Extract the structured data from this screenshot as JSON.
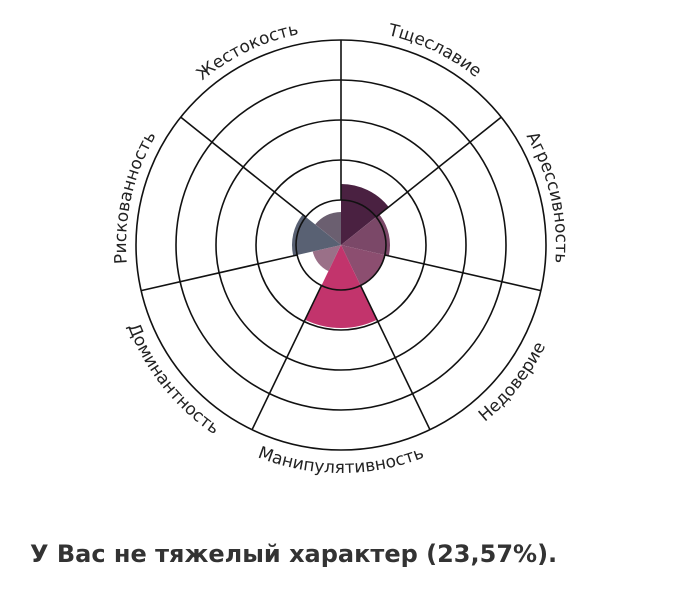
{
  "chart_data": {
    "type": "polar-area",
    "categories": [
      "Тщеславие",
      "Агрессивность",
      "Недоверие",
      "Манипулятивность",
      "Доминантность",
      "Рискованность",
      "Жестокость"
    ],
    "values": [
      1.4,
      1.1,
      1.0,
      1.95,
      0.6,
      1.1,
      0.7
    ],
    "colors": [
      "#4a2141",
      "#7b4868",
      "#8c4e70",
      "#c2346c",
      "#9a7088",
      "#596173",
      "#6b5f70"
    ],
    "rlim": [
      0,
      5
    ],
    "rticks": [
      1,
      2,
      3,
      4,
      5
    ],
    "grid": true
  },
  "caption": "У Вас не тяжелый характер (23,57%)."
}
